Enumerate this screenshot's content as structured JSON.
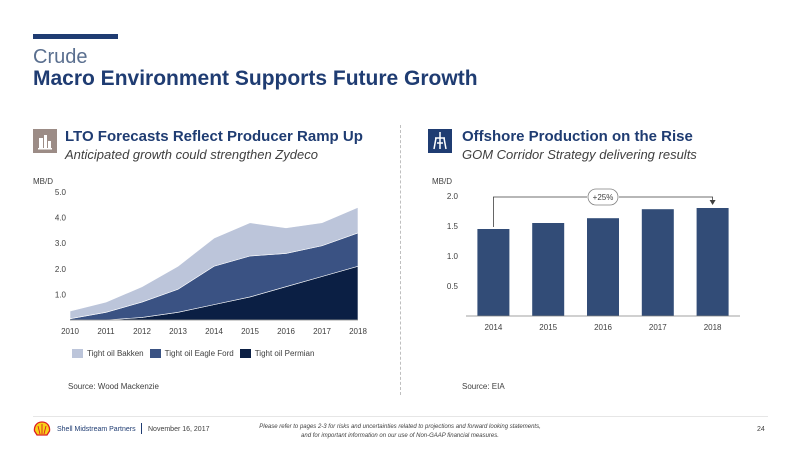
{
  "header": {
    "kicker": "Crude",
    "title": "Macro Environment Supports Future Growth"
  },
  "left_panel": {
    "icon": "oil-pumpjack-icon",
    "title": "LTO Forecasts Reflect Producer Ramp Up",
    "subtitle": "Anticipated growth could strengthen Zydeco",
    "unit": "MB/D",
    "source": "Source: Wood Mackenzie"
  },
  "right_panel": {
    "icon": "offshore-platform-icon",
    "title": "Offshore Production on the Rise",
    "subtitle": "GOM Corridor Strategy delivering results",
    "unit": "MB/D",
    "source": "Source: EIA"
  },
  "chart_data": [
    {
      "type": "area",
      "stacked": true,
      "ylabel": "MB/D",
      "x": [
        "2010",
        "2011",
        "2012",
        "2013",
        "2014",
        "2015",
        "2016",
        "2017",
        "2018"
      ],
      "y_ticks": [
        "1.0",
        "2.0",
        "3.0",
        "4.0",
        "5.0"
      ],
      "ylim": [
        0,
        5
      ],
      "grid": false,
      "legend_position": "bottom",
      "series": [
        {
          "name": "Tight oil Permian",
          "color": "#0b1f44",
          "values": [
            0.0,
            0.0,
            0.1,
            0.3,
            0.6,
            0.9,
            1.3,
            1.7,
            2.1
          ]
        },
        {
          "name": "Tight oil Eagle Ford",
          "color": "#3a5283",
          "values": [
            0.05,
            0.3,
            0.6,
            0.9,
            1.5,
            1.6,
            1.3,
            1.2,
            1.3
          ]
        },
        {
          "name": "Tight oil Bakken",
          "color": "#bcc5da",
          "values": [
            0.3,
            0.4,
            0.6,
            0.9,
            1.1,
            1.3,
            1.0,
            0.9,
            1.0
          ]
        }
      ]
    },
    {
      "type": "bar",
      "ylabel": "MB/D",
      "categories": [
        "2014",
        "2015",
        "2016",
        "2017",
        "2018"
      ],
      "values": [
        1.45,
        1.55,
        1.63,
        1.78,
        1.8
      ],
      "y_ticks": [
        "0.5",
        "1.0",
        "1.5",
        "2.0"
      ],
      "ylim": [
        0,
        2
      ],
      "grid": false,
      "bar_color": "#324c77",
      "annotation": "+25%"
    }
  ],
  "footer": {
    "company": "Shell Midstream Partners",
    "date": "November 16, 2017",
    "disclaimer_line1": "Please refer to pages 2-3 for risks and uncertainties related to projections and forward looking statements,",
    "disclaimer_line2": "and for important information on our use of Non-GAAP financial measures.",
    "page_number": "24",
    "logo": "shell-logo"
  }
}
